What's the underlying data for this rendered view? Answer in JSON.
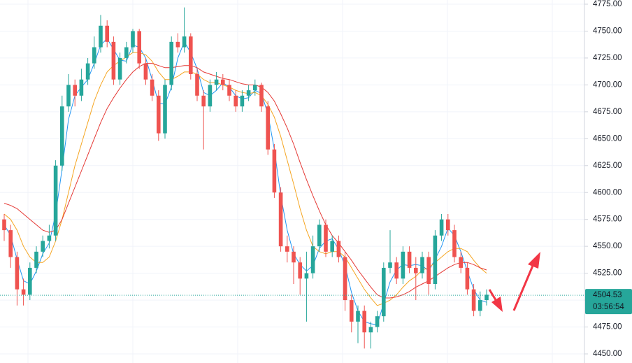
{
  "chart_data": {
    "type": "candlestick",
    "up_color": "#26a69a",
    "down_color": "#ef5350",
    "ylim": [
      4450,
      4775
    ],
    "yticks": [
      {
        "value": 4450,
        "label": "4450.00"
      },
      {
        "value": 4475,
        "label": "4475.00"
      },
      {
        "value": 4500,
        "label": "4500.00"
      },
      {
        "value": 4525,
        "label": "4525.00"
      },
      {
        "value": 4550,
        "label": "4550.00"
      },
      {
        "value": 4575,
        "label": "4575.00"
      },
      {
        "value": 4600,
        "label": "4600.00"
      },
      {
        "value": 4625,
        "label": "4625.00"
      },
      {
        "value": 4650,
        "label": "4650.00"
      },
      {
        "value": 4675,
        "label": "4675.00"
      },
      {
        "value": 4700,
        "label": "4700.00"
      },
      {
        "value": 4725,
        "label": "4725.00"
      },
      {
        "value": 4750,
        "label": "4750.00"
      },
      {
        "value": 4775,
        "label": "4775.00"
      }
    ],
    "grid": true,
    "candles": [
      [
        4575,
        4580,
        4555,
        4565
      ],
      [
        4565,
        4570,
        4530,
        4540
      ],
      [
        4540,
        4545,
        4495,
        4510
      ],
      [
        4510,
        4520,
        4495,
        4505
      ],
      [
        4505,
        4535,
        4500,
        4530
      ],
      [
        4530,
        4550,
        4525,
        4545
      ],
      [
        4545,
        4560,
        4540,
        4555
      ],
      [
        4555,
        4570,
        4548,
        4560
      ],
      [
        4560,
        4630,
        4555,
        4625
      ],
      [
        4625,
        4690,
        4620,
        4680
      ],
      [
        4680,
        4710,
        4675,
        4700
      ],
      [
        4700,
        4705,
        4680,
        4690
      ],
      [
        4690,
        4715,
        4685,
        4705
      ],
      [
        4705,
        4725,
        4700,
        4720
      ],
      [
        4720,
        4745,
        4715,
        4735
      ],
      [
        4735,
        4765,
        4730,
        4755
      ],
      [
        4755,
        4760,
        4735,
        4740
      ],
      [
        4740,
        4745,
        4700,
        4705
      ],
      [
        4705,
        4730,
        4700,
        4725
      ],
      [
        4725,
        4740,
        4720,
        4735
      ],
      [
        4735,
        4752,
        4730,
        4750
      ],
      [
        4750,
        4752,
        4715,
        4720
      ],
      [
        4720,
        4725,
        4700,
        4705
      ],
      [
        4705,
        4710,
        4685,
        4690
      ],
      [
        4690,
        4695,
        4648,
        4655
      ],
      [
        4655,
        4705,
        4650,
        4700
      ],
      [
        4700,
        4745,
        4695,
        4740
      ],
      [
        4740,
        4748,
        4730,
        4735
      ],
      [
        4735,
        4772,
        4730,
        4745
      ],
      [
        4745,
        4748,
        4705,
        4710
      ],
      [
        4710,
        4715,
        4685,
        4690
      ],
      [
        4690,
        4695,
        4640,
        4680
      ],
      [
        4680,
        4705,
        4675,
        4700
      ],
      [
        4700,
        4712,
        4695,
        4705
      ],
      [
        4705,
        4710,
        4695,
        4700
      ],
      [
        4700,
        4705,
        4685,
        4690
      ],
      [
        4690,
        4695,
        4675,
        4680
      ],
      [
        4680,
        4695,
        4675,
        4690
      ],
      [
        4690,
        4700,
        4685,
        4695
      ],
      [
        4695,
        4705,
        4690,
        4700
      ],
      [
        4700,
        4702,
        4675,
        4680
      ],
      [
        4680,
        4685,
        4635,
        4640
      ],
      [
        4640,
        4645,
        4595,
        4600
      ],
      [
        4600,
        4605,
        4545,
        4550
      ],
      [
        4550,
        4560,
        4535,
        4545
      ],
      [
        4545,
        4550,
        4515,
        4535
      ],
      [
        4535,
        4540,
        4505,
        4520
      ],
      [
        4520,
        4545,
        4480,
        4525
      ],
      [
        4525,
        4560,
        4520,
        4550
      ],
      [
        4550,
        4575,
        4545,
        4570
      ],
      [
        4570,
        4575,
        4540,
        4545
      ],
      [
        4545,
        4560,
        4540,
        4555
      ],
      [
        4555,
        4560,
        4535,
        4540
      ],
      [
        4540,
        4545,
        4490,
        4500
      ],
      [
        4500,
        4505,
        4470,
        4480
      ],
      [
        4480,
        4495,
        4460,
        4490
      ],
      [
        4490,
        4495,
        4455,
        4470
      ],
      [
        4470,
        4480,
        4455,
        4475
      ],
      [
        4475,
        4490,
        4470,
        4485
      ],
      [
        4485,
        4535,
        4480,
        4530
      ],
      [
        4530,
        4565,
        4525,
        4535
      ],
      [
        4535,
        4540,
        4515,
        4520
      ],
      [
        4520,
        4550,
        4515,
        4545
      ],
      [
        4545,
        4550,
        4525,
        4530
      ],
      [
        4530,
        4540,
        4500,
        4525
      ],
      [
        4525,
        4545,
        4520,
        4540
      ],
      [
        4540,
        4545,
        4505,
        4515
      ],
      [
        4515,
        4565,
        4510,
        4560
      ],
      [
        4560,
        4580,
        4555,
        4575
      ],
      [
        4575,
        4580,
        4560,
        4565
      ],
      [
        4565,
        4570,
        4535,
        4540
      ],
      [
        4540,
        4545,
        4525,
        4530
      ],
      [
        4530,
        4535,
        4505,
        4510
      ],
      [
        4510,
        4515,
        4485,
        4490
      ],
      [
        4490,
        4508,
        4485,
        4500
      ],
      [
        4500,
        4510,
        4495,
        4505
      ]
    ],
    "lines": [
      {
        "color": "#2196f3",
        "values": [
          4570,
          4560,
          4538,
          4518,
          4515,
          4527,
          4543,
          4553,
          4580,
          4622,
          4668,
          4690,
          4698,
          4705,
          4720,
          4737,
          4743,
          4733,
          4723,
          4722,
          4737,
          4735,
          4725,
          4705,
          4683,
          4682,
          4698,
          4725,
          4740,
          4730,
          4715,
          4693,
          4690,
          4695,
          4702,
          4698,
          4690,
          4687,
          4688,
          4695,
          4692,
          4673,
          4640,
          4597,
          4565,
          4543,
          4533,
          4527,
          4532,
          4548,
          4555,
          4557,
          4547,
          4532,
          4507,
          4490,
          4480,
          4478,
          4477,
          4497,
          4517,
          4528,
          4533,
          4532,
          4533,
          4532,
          4527,
          4538,
          4550,
          4567,
          4560,
          4545,
          4527,
          4510,
          4500,
          4498
        ]
      },
      {
        "color": "#f5a623",
        "values": [
          4580,
          4575,
          4565,
          4550,
          4540,
          4535,
          4535,
          4540,
          4555,
          4575,
          4600,
          4625,
          4645,
          4665,
          4685,
          4700,
          4712,
          4718,
          4722,
          4726,
          4730,
          4730,
          4728,
          4722,
          4712,
          4705,
          4705,
          4708,
          4712,
          4712,
          4710,
          4705,
          4702,
          4702,
          4700,
          4698,
          4695,
          4693,
          4692,
          4693,
          4690,
          4682,
          4670,
          4652,
          4630,
          4608,
          4585,
          4565,
          4550,
          4545,
          4543,
          4545,
          4545,
          4540,
          4530,
          4520,
          4510,
          4502,
          4495,
          4497,
          4500,
          4505,
          4512,
          4518,
          4522,
          4528,
          4530,
          4535,
          4540,
          4545,
          4548,
          4548,
          4545,
          4537,
          4530,
          4525
        ]
      },
      {
        "color": "#e53935",
        "values": [
          4590,
          4588,
          4585,
          4580,
          4575,
          4570,
          4565,
          4563,
          4565,
          4575,
          4590,
          4605,
          4620,
          4635,
          4650,
          4665,
          4678,
          4688,
          4697,
          4705,
          4712,
          4717,
          4720,
          4720,
          4718,
          4716,
          4716,
          4717,
          4718,
          4718,
          4716,
          4712,
          4710,
          4708,
          4706,
          4705,
          4703,
          4701,
          4700,
          4700,
          4698,
          4693,
          4685,
          4673,
          4660,
          4645,
          4628,
          4612,
          4597,
          4583,
          4570,
          4560,
          4553,
          4545,
          4537,
          4528,
          4520,
          4512,
          4505,
          4502,
          4502,
          4503,
          4505,
          4508,
          4512,
          4515,
          4518,
          4522,
          4526,
          4530,
          4533,
          4535,
          4535,
          4533,
          4530,
          4528
        ]
      }
    ],
    "last_price": 4504.53,
    "last_price_color": "#26a69a",
    "countdown": "03:56:54"
  }
}
